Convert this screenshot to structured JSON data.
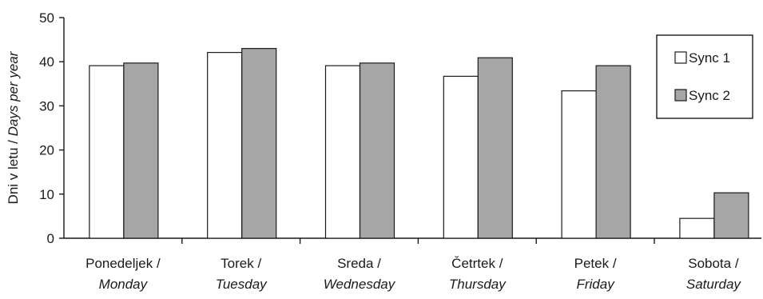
{
  "chart_data": {
    "type": "bar",
    "title": "",
    "ylabel": {
      "main": "Dni v letu / ",
      "italic": "Days per year"
    },
    "xlabel": "",
    "ylim": [
      0,
      50
    ],
    "yticks": [
      0,
      10,
      20,
      30,
      40,
      50
    ],
    "grid": false,
    "legend_position": "top-right",
    "categories": [
      {
        "main": "Ponedeljek /",
        "italic": "Monday"
      },
      {
        "main": "Torek /",
        "italic": "Tuesday"
      },
      {
        "main": "Sreda /",
        "italic": "Wednesday"
      },
      {
        "main": "Četrtek /",
        "italic": "Thursday"
      },
      {
        "main": "Petek /",
        "italic": "Friday"
      },
      {
        "main": "Sobota /",
        "italic": "Saturday"
      }
    ],
    "series": [
      {
        "name": "Sync 1",
        "color": "#ffffff",
        "values": [
          39.1,
          42.1,
          39.1,
          36.7,
          33.4,
          4.5
        ]
      },
      {
        "name": "Sync 2",
        "color": "#a6a6a6",
        "values": [
          39.7,
          43.0,
          39.7,
          40.9,
          39.1,
          10.3
        ]
      }
    ],
    "colors": {
      "axis": "#1a1a1a",
      "bar_stroke": "#1a1a1a"
    }
  }
}
